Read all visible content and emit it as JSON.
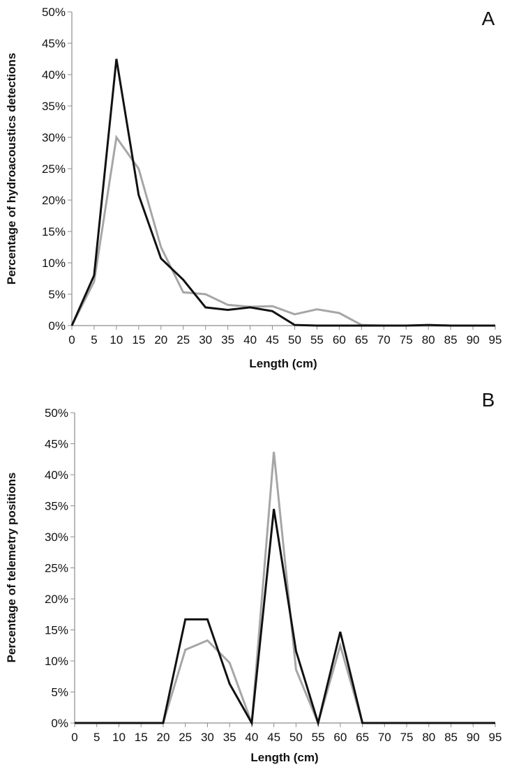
{
  "colors": {
    "series_black": "#111111",
    "series_gray": "#a6a6a6",
    "axis": "#8c8c8c"
  },
  "chart_data": [
    {
      "type": "line",
      "panel_label": "A",
      "xlabel": "Length (cm)",
      "ylabel": "Percentage of hydroacoustics detections",
      "x": [
        0,
        5,
        10,
        15,
        20,
        25,
        30,
        35,
        40,
        45,
        50,
        55,
        60,
        65,
        70,
        75,
        80,
        85,
        90,
        95
      ],
      "x_tick_labels": [
        "0",
        "5",
        "10",
        "15",
        "20",
        "25",
        "30",
        "35",
        "40",
        "45",
        "50",
        "55",
        "60",
        "65",
        "70",
        "75",
        "80",
        "85",
        "90",
        "95"
      ],
      "y_tick_labels": [
        "0%",
        "5%",
        "10%",
        "15%",
        "20%",
        "25%",
        "30%",
        "35%",
        "40%",
        "45%",
        "50%"
      ],
      "ylim": [
        0,
        50
      ],
      "y_unit": "%",
      "grid": false,
      "series": [
        {
          "color": "#a6a6a6",
          "values": [
            0,
            7,
            30,
            25,
            12.5,
            5.3,
            5,
            3.3,
            3,
            3.1,
            1.8,
            2.6,
            2,
            0.1,
            0,
            0,
            0,
            0,
            0,
            0
          ]
        },
        {
          "color": "#111111",
          "values": [
            0,
            8,
            42.5,
            20.8,
            10.7,
            7.3,
            2.9,
            2.5,
            2.9,
            2.3,
            0.1,
            0,
            0,
            0,
            0,
            0,
            0.1,
            0,
            0,
            0
          ]
        }
      ]
    },
    {
      "type": "line",
      "panel_label": "B",
      "xlabel": "Length (cm)",
      "ylabel": "Percentage of telemetry positions",
      "x": [
        0,
        5,
        10,
        15,
        20,
        25,
        30,
        35,
        40,
        45,
        50,
        55,
        60,
        65,
        70,
        75,
        80,
        85,
        90,
        95
      ],
      "x_tick_labels": [
        "0",
        "5",
        "10",
        "15",
        "20",
        "25",
        "30",
        "35",
        "40",
        "45",
        "50",
        "55",
        "60",
        "65",
        "70",
        "75",
        "80",
        "85",
        "90",
        "95"
      ],
      "y_tick_labels": [
        "0%",
        "5%",
        "10%",
        "15%",
        "20%",
        "25%",
        "30%",
        "35%",
        "40%",
        "45%",
        "50%"
      ],
      "ylim": [
        0,
        50
      ],
      "y_unit": "%",
      "grid": false,
      "series": [
        {
          "color": "#a6a6a6",
          "values": [
            0,
            0,
            0,
            0,
            0,
            11.8,
            13.3,
            9.7,
            0,
            43.7,
            8.6,
            0,
            12.5,
            0,
            0,
            0,
            0,
            0,
            0,
            0
          ]
        },
        {
          "color": "#111111",
          "values": [
            0,
            0,
            0,
            0,
            0,
            16.7,
            16.7,
            6.3,
            0,
            34.5,
            11.6,
            0,
            14.7,
            0,
            0,
            0,
            0,
            0,
            0,
            0
          ]
        }
      ]
    }
  ]
}
